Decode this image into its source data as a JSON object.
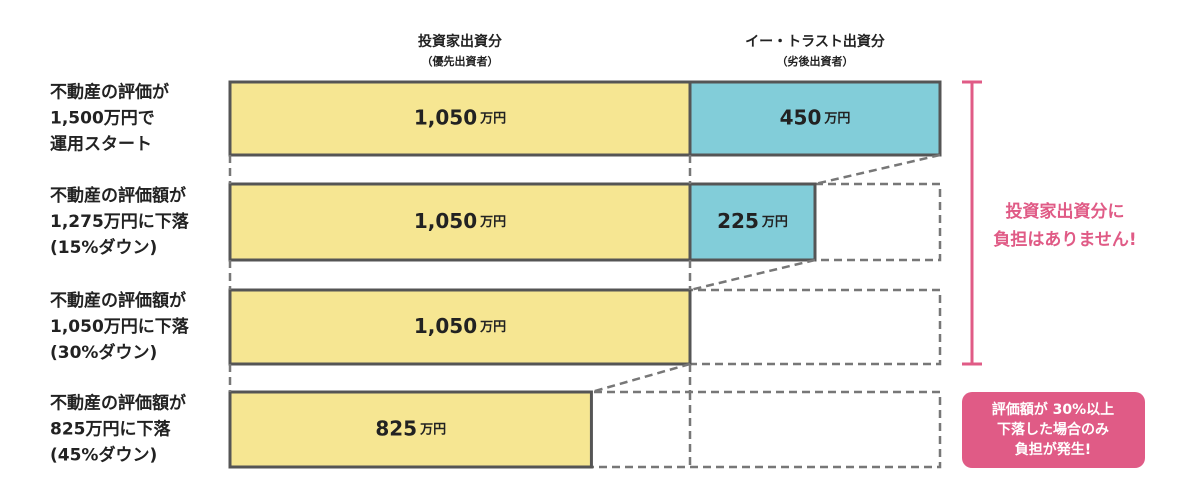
{
  "columns": [
    {
      "title": "投資家出資分",
      "subtitle": "（優先出資者）"
    },
    {
      "title": "イー・トラスト出資分",
      "subtitle": "（劣後出資者）"
    }
  ],
  "unit": "万円",
  "rows": [
    {
      "label": [
        "不動産の評価が",
        "1,500万円で",
        "運用スタート"
      ],
      "values": [
        1050,
        450
      ],
      "value_labels": [
        "1,050",
        "450"
      ]
    },
    {
      "label": [
        "不動産の評価額が",
        "1,275万円に下落",
        "(15%ダウン)"
      ],
      "values": [
        1050,
        225
      ],
      "value_labels": [
        "1,050",
        "225"
      ]
    },
    {
      "label": [
        "不動産の評価額が",
        "1,050万円に下落",
        "(30%ダウン)"
      ],
      "values": [
        1050
      ],
      "value_labels": [
        "1,050"
      ]
    },
    {
      "label": [
        "不動産の評価額が",
        "825万円に下落",
        "(45%ダウン)"
      ],
      "values": [
        825
      ],
      "value_labels": [
        "825"
      ]
    }
  ],
  "note": [
    "投資家出資分に",
    "負担はありません!"
  ],
  "badge": [
    "評価額が 30%以上",
    "下落した場合のみ",
    "負担が発生!"
  ]
}
